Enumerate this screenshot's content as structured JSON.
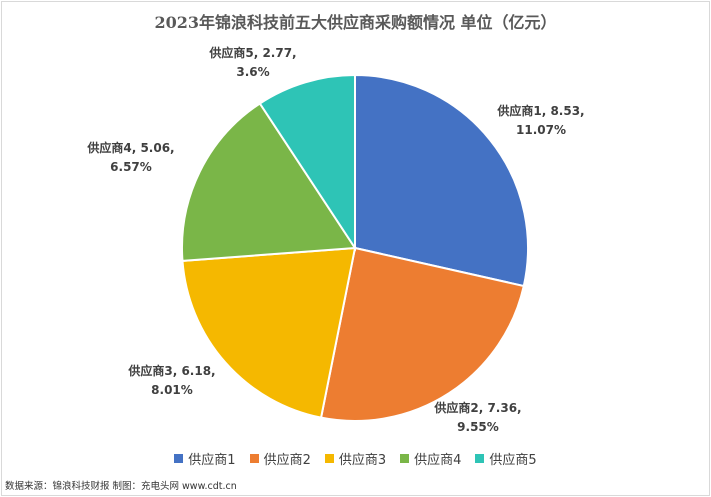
{
  "chart_data": {
    "type": "pie",
    "title": "2023年锦浪科技前五大供应商采购额情况 单位（亿元）",
    "series": [
      {
        "name": "供应商1",
        "value": 8.53,
        "percent_label": "11.07%",
        "color": "#4472c4",
        "label": "供应商1, 8.53,"
      },
      {
        "name": "供应商2",
        "value": 7.36,
        "percent_label": "9.55%",
        "color": "#ed7d31",
        "label": "供应商2, 7.36,"
      },
      {
        "name": "供应商3",
        "value": 6.18,
        "percent_label": "8.01%",
        "color": "#f5b800",
        "label": "供应商3, 6.18,"
      },
      {
        "name": "供应商4",
        "value": 5.06,
        "percent_label": "6.57%",
        "color": "#7ab648",
        "label": "供应商4, 5.06,"
      },
      {
        "name": "供应商5",
        "value": 2.77,
        "percent_label": "3.6%",
        "color": "#2ec4b6",
        "label": "供应商5, 2.77,"
      }
    ],
    "start_angle": "12 o'clock, clockwise",
    "legend_position": "bottom"
  },
  "footer": {
    "source": "数据来源：锦浪科技财报 制图：充电头网 www.cdt.cn"
  }
}
